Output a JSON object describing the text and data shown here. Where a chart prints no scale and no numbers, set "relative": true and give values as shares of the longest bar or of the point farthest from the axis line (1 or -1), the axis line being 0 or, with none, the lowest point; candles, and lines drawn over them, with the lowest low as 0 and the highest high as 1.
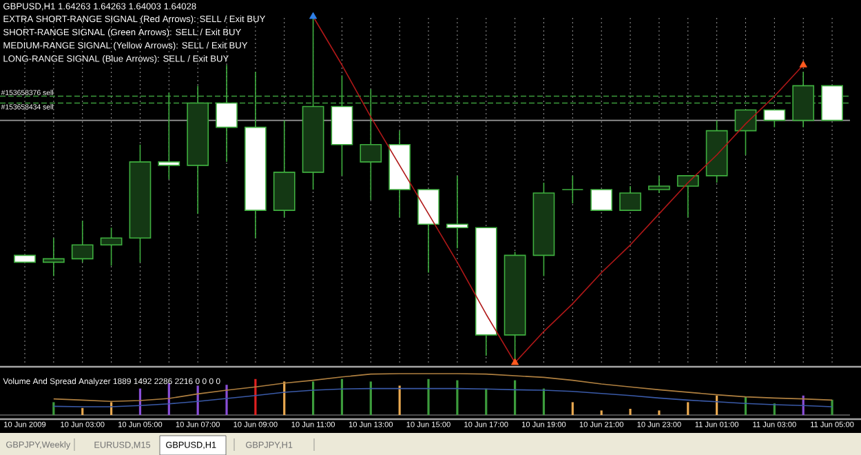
{
  "chart_data": [
    {
      "type": "candlestick",
      "title": "GBPUSD,H1  1.64263 1.64263 1.64003 1.64028",
      "annotations": [
        "EXTRA SHORT-RANGE SIGNAL (Red Arrows): SELL / Exit BUY",
        "SHORT-RANGE SIGNAL (Green Arrows): SELL / Exit BUY",
        "MEDIUM-RANGE SIGNAL (Yellow Arrows): SELL / Exit BUY",
        "LONG-RANGE SIGNAL (Blue Arrows): SELL / Exit BUY"
      ],
      "relative": true,
      "tick_labels": false,
      "grid": "x",
      "categories": [
        null,
        null,
        null,
        null,
        null,
        null,
        null,
        null,
        null,
        null,
        null,
        null,
        null,
        null,
        null,
        null,
        null,
        null,
        null,
        null,
        null,
        null,
        null,
        null,
        null,
        null,
        null,
        null,
        null
      ],
      "ohlc": [
        [
          0.31,
          0.31,
          0.29,
          0.29
        ],
        [
          0.29,
          0.36,
          0.25,
          0.3
        ],
        [
          0.3,
          0.41,
          0.29,
          0.34
        ],
        [
          0.34,
          0.39,
          0.28,
          0.36
        ],
        [
          0.36,
          0.63,
          0.29,
          0.58
        ],
        [
          0.58,
          0.78,
          0.53,
          0.57
        ],
        [
          0.57,
          0.8,
          0.43,
          0.75
        ],
        [
          0.75,
          0.86,
          0.58,
          0.68
        ],
        [
          0.68,
          0.84,
          0.36,
          0.44
        ],
        [
          0.44,
          0.7,
          0.42,
          0.55
        ],
        [
          0.55,
          1.0,
          0.5,
          0.74
        ],
        [
          0.74,
          0.83,
          0.54,
          0.63
        ],
        [
          0.58,
          0.79,
          0.47,
          0.63
        ],
        [
          0.63,
          0.67,
          0.42,
          0.5
        ],
        [
          0.5,
          0.5,
          0.26,
          0.4
        ],
        [
          0.4,
          0.54,
          0.33,
          0.39
        ],
        [
          0.39,
          0.39,
          0.02,
          0.08
        ],
        [
          0.08,
          0.32,
          0.0,
          0.31
        ],
        [
          0.31,
          0.52,
          0.25,
          0.49
        ],
        [
          0.5,
          0.54,
          0.46,
          0.5
        ],
        [
          0.5,
          0.5,
          0.44,
          0.44
        ],
        [
          0.44,
          0.51,
          0.44,
          0.49
        ],
        [
          0.5,
          0.54,
          0.49,
          0.51
        ],
        [
          0.51,
          0.54,
          0.42,
          0.54
        ],
        [
          0.54,
          0.7,
          0.52,
          0.67
        ],
        [
          0.67,
          0.73,
          0.6,
          0.73
        ],
        [
          0.73,
          0.73,
          0.68,
          0.7
        ],
        [
          0.7,
          0.84,
          0.68,
          0.8
        ],
        [
          0.8,
          0.8,
          0.7,
          0.7
        ]
      ],
      "ref_lines": [
        {
          "axis": "y",
          "value": 0.77,
          "label": "#153658376 sell",
          "color": "#3c9c3c",
          "line_style": "dashed"
        },
        {
          "axis": "y",
          "value": 0.75,
          "label": "#153658434 sell",
          "color": "#3c9c3c",
          "line_style": "dashed"
        },
        {
          "axis": "y",
          "value": 0.7,
          "color": "#9a9a9a",
          "line_style": "solid"
        }
      ],
      "series": [
        {
          "type": "line",
          "color": "#b01818",
          "values": [
            null,
            null,
            null,
            null,
            null,
            null,
            null,
            null,
            null,
            null,
            1.0,
            0.86,
            0.71,
            0.57,
            0.43,
            0.29,
            0.14,
            0.0,
            0.09,
            0.17,
            0.26,
            0.34,
            0.43,
            0.52,
            0.6,
            0.69,
            0.77,
            0.86,
            null
          ]
        },
        {
          "type": "scatter",
          "marker": "triangle",
          "values": [
            null,
            null,
            null,
            null,
            null,
            null,
            null,
            null,
            null,
            null,
            1.0,
            null,
            null,
            null,
            null,
            null,
            null,
            0.0,
            null,
            null,
            null,
            null,
            null,
            null,
            null,
            null,
            null,
            0.86,
            null
          ],
          "colors": [
            "#2f80e8",
            "#2f80e8",
            "#2f80e8",
            "#2f80e8",
            "#2f80e8",
            "#2f80e8",
            "#2f80e8",
            "#2f80e8",
            "#2f80e8",
            "#2f80e8",
            "#2f80e8",
            "#ff5a20",
            "#ff5a20",
            "#ff5a20",
            "#ff5a20",
            "#ff5a20",
            "#ff5a20",
            "#ff5a20",
            "#ff5a20",
            "#ff5a20",
            "#ff5a20",
            "#ff5a20",
            "#ff5a20",
            "#ff5a20",
            "#ff5a20",
            "#ff5a20",
            "#ff5a20",
            "#ff5a20",
            "#ff5a20"
          ]
        }
      ]
    },
    {
      "type": "bar",
      "title": "Volume And Spread Analyzer 1889 1492 2286 2216 0 0 0 0",
      "annotations": [
        "GBPJPY,Weekly",
        "EURUSD,M15",
        "GBPUSD,H1",
        "GBPJPY,H1"
      ],
      "relative": true,
      "categories": [
        "10 Jun 2009",
        null,
        "10 Jun 03:00",
        null,
        "10 Jun 05:00",
        null,
        "10 Jun 07:00",
        null,
        "10 Jun 09:00",
        null,
        "10 Jun 11:00",
        null,
        "10 Jun 13:00",
        null,
        "10 Jun 15:00",
        null,
        "10 Jun 17:00",
        null,
        "10 Jun 19:00",
        null,
        "10 Jun 21:00",
        null,
        "10 Jun 23:00",
        null,
        "11 Jun 01:00",
        null,
        "11 Jun 03:00",
        null,
        "11 Jun 05:00"
      ],
      "series": [
        {
          "type": "bar",
          "values": [
            null,
            0.31,
            0.17,
            0.31,
            0.64,
            0.77,
            0.71,
            0.73,
            0.87,
            0.81,
            0.81,
            0.87,
            0.81,
            0.71,
            0.87,
            0.84,
            0.64,
            0.84,
            0.64,
            0.31,
            0.11,
            0.15,
            0.11,
            0.31,
            0.47,
            0.44,
            0.28,
            0.47,
            0.37
          ],
          "colors": [
            "#3c9c3c",
            "#3c9c3c",
            "#e8a850",
            "#e8a850",
            "#8a4fd8",
            "#8a4fd8",
            "#8a4fd8",
            "#8a4fd8",
            "#e02020",
            "#e8a850",
            "#3c9c3c",
            "#3c9c3c",
            "#3c9c3c",
            "#e8a850",
            "#3c9c3c",
            "#3c9c3c",
            "#3c9c3c",
            "#3c9c3c",
            "#3c9c3c",
            "#e8a850",
            "#e8a850",
            "#e8a850",
            "#e8a850",
            "#e8a850",
            "#e8a850",
            "#3c9c3c",
            "#3c9c3c",
            "#8a4fd8",
            "#3c9c3c"
          ]
        },
        {
          "type": "line",
          "color": "#b08040",
          "values": [
            null,
            0.39,
            0.36,
            0.33,
            0.35,
            0.4,
            0.51,
            0.6,
            0.68,
            0.77,
            0.84,
            0.92,
            0.99,
            1.0,
            1.0,
            1.0,
            0.99,
            0.95,
            0.91,
            0.84,
            0.75,
            0.68,
            0.61,
            0.55,
            0.49,
            0.44,
            0.41,
            0.39,
            0.36
          ]
        },
        {
          "type": "line",
          "color": "#3a5aa8",
          "values": [
            null,
            0.21,
            0.2,
            0.2,
            0.23,
            0.27,
            0.33,
            0.4,
            0.47,
            0.55,
            0.6,
            0.63,
            0.64,
            0.64,
            0.64,
            0.64,
            0.63,
            0.61,
            0.6,
            0.57,
            0.52,
            0.47,
            0.41,
            0.36,
            0.32,
            0.28,
            0.25,
            0.23,
            0.2
          ]
        }
      ]
    }
  ]
}
